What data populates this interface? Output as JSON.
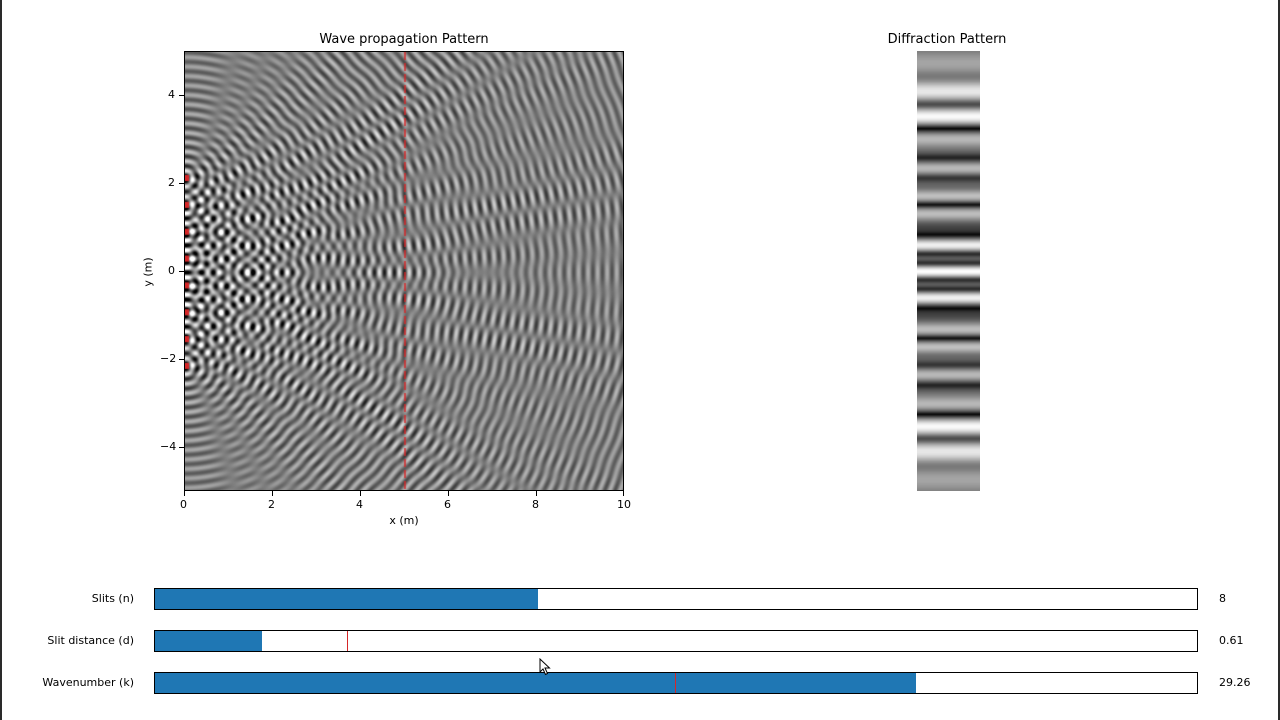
{
  "wave_plot": {
    "title": "Wave propagation Pattern",
    "xlabel": "x (m)",
    "ylabel": "y (m)",
    "xticks": [
      "0",
      "2",
      "4",
      "6",
      "8",
      "10"
    ],
    "yticks": [
      "4",
      "2",
      "0",
      "−2",
      "−4"
    ],
    "xlim": [
      0,
      10
    ],
    "ylim": [
      -5,
      5
    ],
    "colormap": "gray",
    "screen_line_x": 5,
    "screen_line_color": "#d62728",
    "source_color": "#d62728"
  },
  "diffraction_plot": {
    "title": "Diffraction Pattern",
    "colormap": "gray"
  },
  "sliders": [
    {
      "label": "Slits (n)",
      "value": "8",
      "fraction": 0.368,
      "initial_fraction": null
    },
    {
      "label": "Slit distance (d)",
      "value": "0.61",
      "fraction": 0.103,
      "initial_fraction": 0.184
    },
    {
      "label": "Wavenumber (k)",
      "value": "29.26",
      "fraction": 0.73,
      "initial_fraction": 0.499
    }
  ],
  "colors": {
    "slider_fill": "#1f77b4",
    "slider_initial_marker": "#d62728",
    "background": "#ffffff"
  },
  "icons": {
    "cursor": "mouse-pointer-icon"
  }
}
